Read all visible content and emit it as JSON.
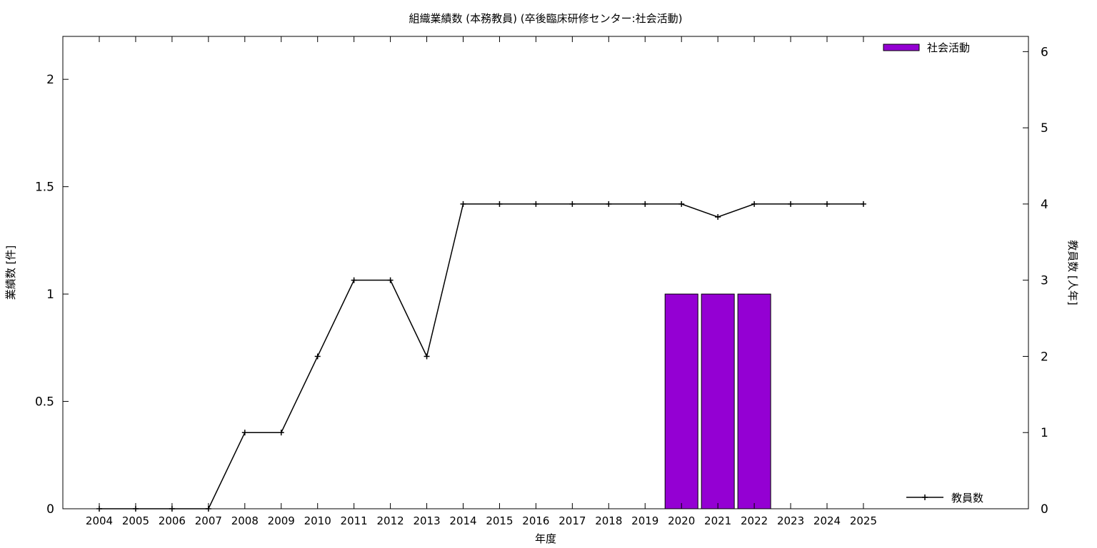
{
  "chart_data": {
    "type": "bar",
    "title": "組織業績数 (本務教員) (卒後臨床研修センター:社会活動)",
    "xlabel": "年度",
    "ylabel": "業績数 [件]",
    "y2label": "教員数 [人年]",
    "categories": [
      "2004",
      "2005",
      "2006",
      "2007",
      "2008",
      "2009",
      "2010",
      "2011",
      "2012",
      "2013",
      "2014",
      "2015",
      "2016",
      "2017",
      "2018",
      "2019",
      "2020",
      "2021",
      "2022",
      "2023",
      "2024",
      "2025"
    ],
    "ylim": [
      0,
      2.2
    ],
    "yticks": [
      "0",
      "0.5",
      "1",
      "1.5",
      "2"
    ],
    "y2lim": [
      0,
      6.2
    ],
    "y2ticks": [
      "0",
      "1",
      "2",
      "3",
      "4",
      "5",
      "6"
    ],
    "grid": false,
    "legend_placement": "top-right (bars), bottom-right (line)",
    "series": [
      {
        "name": "社会活動",
        "kind": "bar",
        "axis": "left",
        "color": "#9400d3",
        "values": [
          0,
          0,
          0,
          0,
          0,
          0,
          0,
          0,
          0,
          0,
          0,
          0,
          0,
          0,
          0,
          0,
          1,
          1,
          1,
          0,
          0,
          0
        ]
      },
      {
        "name": "教員数",
        "kind": "line",
        "axis": "right",
        "color": "#000000",
        "values": [
          0,
          0,
          0,
          0,
          1,
          1,
          2,
          3,
          3,
          2,
          4,
          4,
          4,
          4,
          4,
          4,
          4,
          3.83,
          4,
          4,
          4,
          4
        ]
      }
    ]
  }
}
